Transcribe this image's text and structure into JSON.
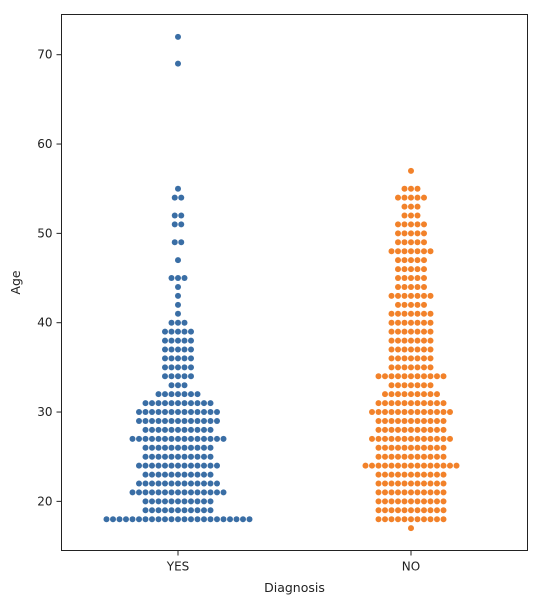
{
  "chart_data": {
    "type": "scatter",
    "subtype": "swarm",
    "title": "",
    "xlabel": "Diagnosis",
    "ylabel": "Age",
    "categories": [
      "YES",
      "NO"
    ],
    "ylim": [
      14.5,
      74.5
    ],
    "yticks": [
      20,
      30,
      40,
      50,
      60,
      70
    ],
    "grid": false,
    "legend": "none",
    "series": [
      {
        "category": "YES",
        "color": "#3a6ea5",
        "age_counts": {
          "18": 23,
          "19": 11,
          "20": 11,
          "21": 15,
          "22": 13,
          "23": 11,
          "24": 13,
          "25": 11,
          "26": 11,
          "27": 15,
          "28": 11,
          "29": 13,
          "30": 13,
          "31": 11,
          "32": 7,
          "33": 3,
          "34": 5,
          "35": 5,
          "36": 5,
          "37": 5,
          "38": 5,
          "39": 5,
          "40": 3,
          "41": 1,
          "42": 1,
          "43": 1,
          "44": 1,
          "45": 3,
          "47": 1,
          "49": 2,
          "51": 2,
          "52": 2,
          "54": 2,
          "55": 1,
          "69": 1,
          "72": 1
        }
      },
      {
        "category": "NO",
        "color": "#f2822a",
        "age_counts": {
          "17": 1,
          "18": 11,
          "19": 11,
          "20": 11,
          "21": 11,
          "22": 11,
          "23": 11,
          "24": 15,
          "25": 11,
          "26": 11,
          "27": 13,
          "28": 11,
          "29": 11,
          "30": 13,
          "31": 11,
          "32": 9,
          "33": 7,
          "34": 11,
          "35": 7,
          "36": 7,
          "37": 7,
          "38": 7,
          "39": 7,
          "40": 7,
          "41": 7,
          "42": 5,
          "43": 7,
          "44": 5,
          "45": 5,
          "46": 5,
          "47": 5,
          "48": 7,
          "49": 5,
          "50": 5,
          "51": 5,
          "52": 3,
          "53": 3,
          "54": 5,
          "55": 3,
          "57": 1
        }
      }
    ]
  }
}
